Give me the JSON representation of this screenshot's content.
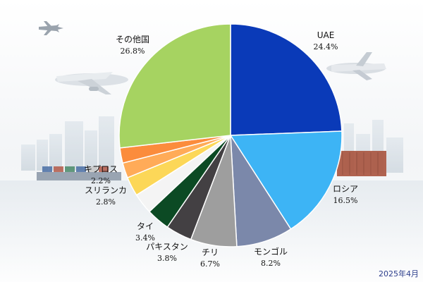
{
  "date_label": "2025年4月",
  "colors": {
    "UAE": "#0a3ab8",
    "ロシア": "#3db4f5",
    "モンゴル": "#7b88aa",
    "チリ": "#9e9e9e",
    "パキスタン": "#434043",
    "タイ": "#0c4a24",
    "white": "#f4f4f4",
    "スリランカ": "#fcd758",
    "キプロス": "#ffab58",
    "orange": "#fb8c3c",
    "その他国": "#a6d361"
  },
  "chart_data": {
    "type": "pie",
    "title": "",
    "slices": [
      {
        "label": "UAE",
        "value": 24.4,
        "pct_text": "24.4%",
        "color_key": "UAE"
      },
      {
        "label": "ロシア",
        "value": 16.5,
        "pct_text": "16.5%",
        "color_key": "ロシア"
      },
      {
        "label": "モンゴル",
        "value": 8.2,
        "pct_text": "8.2%",
        "color_key": "モンゴル"
      },
      {
        "label": "チリ",
        "value": 6.7,
        "pct_text": "6.7%",
        "color_key": "チリ"
      },
      {
        "label": "パキスタン",
        "value": 3.8,
        "pct_text": "3.8%",
        "color_key": "パキスタン"
      },
      {
        "label": "タイ",
        "value": 3.4,
        "pct_text": "3.4%",
        "color_key": "タイ"
      },
      {
        "label": "",
        "value": 3.0,
        "pct_text": "",
        "color_key": "white"
      },
      {
        "label": "スリランカ",
        "value": 2.8,
        "pct_text": "2.8%",
        "color_key": "スリランカ"
      },
      {
        "label": "キプロス",
        "value": 2.2,
        "pct_text": "2.2%",
        "color_key": "キプロス"
      },
      {
        "label": "",
        "value": 2.2,
        "pct_text": "",
        "color_key": "orange"
      },
      {
        "label": "その他国",
        "value": 26.8,
        "pct_text": "26.8%",
        "color_key": "その他国"
      }
    ]
  }
}
